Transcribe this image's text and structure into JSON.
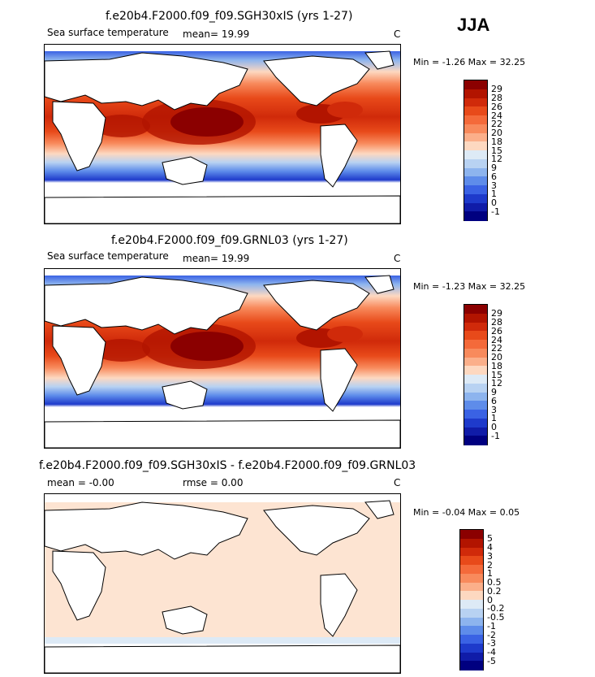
{
  "season": "JJA",
  "panels": [
    {
      "title": "f.e20b4.F2000.f09_f09.SGH30xIS (yrs 1-27)",
      "variable": "Sea surface temperature",
      "stat1": "mean=  19.99",
      "stat2": "",
      "units": "C",
      "minmax": "Min =  -1.26 Max =  32.25",
      "colorbar": {
        "labels": [
          "29",
          "28",
          "26",
          "24",
          "22",
          "20",
          "18",
          "15",
          "12",
          "9",
          "6",
          "3",
          "1",
          "0",
          "-1"
        ],
        "colors": [
          "#8b0000",
          "#b21400",
          "#d02a0a",
          "#e84a1a",
          "#f46a3a",
          "#f88a5c",
          "#fbaf8a",
          "#fdd8c0",
          "#ddeaf6",
          "#b8d2f2",
          "#8db4ee",
          "#5e8cea",
          "#3a62e4",
          "#1e3acb",
          "#101ca8",
          "#000080"
        ]
      }
    },
    {
      "title": "f.e20b4.F2000.f09_f09.GRNL03 (yrs 1-27)",
      "variable": "Sea surface temperature",
      "stat1": "mean=  19.99",
      "stat2": "",
      "units": "C",
      "minmax": "Min =  -1.23 Max =  32.25",
      "colorbar": {
        "labels": [
          "29",
          "28",
          "26",
          "24",
          "22",
          "20",
          "18",
          "15",
          "12",
          "9",
          "6",
          "3",
          "1",
          "0",
          "-1"
        ],
        "colors": [
          "#8b0000",
          "#b21400",
          "#d02a0a",
          "#e84a1a",
          "#f46a3a",
          "#f88a5c",
          "#fbaf8a",
          "#fdd8c0",
          "#ddeaf6",
          "#b8d2f2",
          "#8db4ee",
          "#5e8cea",
          "#3a62e4",
          "#1e3acb",
          "#101ca8",
          "#000080"
        ]
      }
    },
    {
      "title": "f.e20b4.F2000.f09_f09.SGH30xIS - f.e20b4.F2000.f09_f09.GRNL03",
      "variable": "",
      "stat1": "mean =  -0.00",
      "stat2": "rmse =   0.00",
      "units": "C",
      "minmax": "Min =  -0.04 Max =   0.05",
      "colorbar": {
        "labels": [
          "5",
          "4",
          "3",
          "2",
          "1",
          "0.5",
          "0.2",
          "0",
          "-0.2",
          "-0.5",
          "-1",
          "-2",
          "-3",
          "-4",
          "-5"
        ],
        "colors": [
          "#8b0000",
          "#b21400",
          "#d02a0a",
          "#e84a1a",
          "#f46a3a",
          "#f88a5c",
          "#fbaf8a",
          "#fdd8c0",
          "#ddeaf6",
          "#b8d2f2",
          "#8db4ee",
          "#5e8cea",
          "#3a62e4",
          "#1e3acb",
          "#101ca8",
          "#000080"
        ]
      }
    }
  ]
}
